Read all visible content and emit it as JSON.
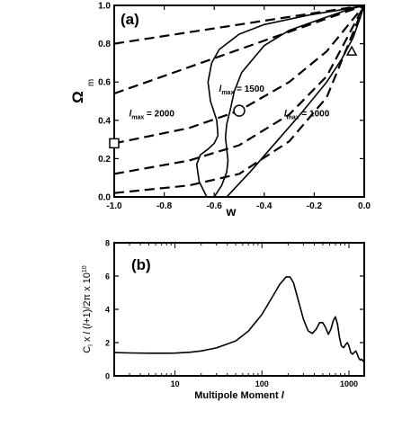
{
  "chart_data": [
    {
      "type": "line",
      "panel_label": "(a)",
      "xlabel": "w",
      "ylabel": "Ω",
      "ylabel_sub": "m",
      "xlim": [
        -1.0,
        0.0
      ],
      "ylim": [
        0.0,
        1.0
      ],
      "x_ticks": [
        -1.0,
        -0.8,
        -0.6,
        -0.4,
        -0.2,
        0.0
      ],
      "x_tick_labels": [
        "-1.0",
        "-0.8",
        "-0.6",
        "-0.4",
        "-0.2",
        "0.0"
      ],
      "y_ticks": [
        0.0,
        0.2,
        0.4,
        0.6,
        0.8,
        1.0
      ],
      "y_tick_labels": [
        "0.0",
        "0.2",
        "0.4",
        "0.6",
        "0.8",
        "1.0"
      ],
      "dashed_lines": [
        {
          "x": [
            -1.0,
            0.0
          ],
          "y": [
            0.8,
            1.0
          ]
        },
        {
          "x": [
            -1.0,
            0.0
          ],
          "y": [
            0.54,
            1.0
          ]
        },
        {
          "x": [
            -1.0,
            -0.7,
            -0.5,
            -0.3,
            -0.15,
            0.0
          ],
          "y": [
            0.28,
            0.36,
            0.45,
            0.6,
            0.76,
            1.0
          ]
        },
        {
          "x": [
            -1.0,
            -0.7,
            -0.5,
            -0.3,
            -0.15,
            0.0
          ],
          "y": [
            0.12,
            0.19,
            0.27,
            0.43,
            0.63,
            1.0
          ]
        },
        {
          "x": [
            -1.0,
            -0.7,
            -0.5,
            -0.3,
            -0.15,
            0.0
          ],
          "y": [
            0.02,
            0.06,
            0.12,
            0.29,
            0.52,
            1.0
          ]
        }
      ],
      "series": [
        {
          "label": "l_max = 2000",
          "x": [
            -0.63,
            -0.66,
            -0.67,
            -0.655,
            -0.625,
            -0.6,
            -0.585,
            -0.59,
            -0.615,
            -0.625,
            -0.61,
            -0.58,
            -0.5,
            -0.4,
            -0.22,
            -0.08,
            0.0
          ],
          "y": [
            0.0,
            0.08,
            0.17,
            0.22,
            0.25,
            0.28,
            0.32,
            0.4,
            0.5,
            0.6,
            0.7,
            0.77,
            0.85,
            0.9,
            0.95,
            0.98,
            1.0
          ]
        },
        {
          "label": "l_max = 1500",
          "x": [
            -0.6,
            -0.57,
            -0.55,
            -0.545,
            -0.55,
            -0.555,
            -0.55,
            -0.535,
            -0.52,
            -0.49,
            -0.4,
            -0.3,
            -0.17,
            -0.06,
            0.0
          ],
          "y": [
            0.0,
            0.06,
            0.13,
            0.19,
            0.25,
            0.31,
            0.38,
            0.46,
            0.55,
            0.65,
            0.79,
            0.87,
            0.93,
            0.98,
            1.0
          ]
        },
        {
          "label": "l_max = 1000",
          "x": [
            -0.55,
            -0.45,
            -0.35,
            -0.25,
            -0.15,
            -0.09,
            -0.045,
            -0.015,
            0.0
          ],
          "y": [
            0.0,
            0.14,
            0.29,
            0.44,
            0.6,
            0.72,
            0.83,
            0.94,
            1.0
          ]
        }
      ],
      "annotations": [
        {
          "text_l": "l",
          "text_sub": "max",
          "text_rest": " = 2000",
          "x": -0.85,
          "y": 0.42
        },
        {
          "text_l": "l",
          "text_sub": "max",
          "text_rest": " = 1500",
          "x": -0.49,
          "y": 0.55
        },
        {
          "text_l": "l",
          "text_sub": "max",
          "text_rest": " = 1000",
          "x": -0.23,
          "y": 0.42
        }
      ],
      "markers": [
        {
          "shape": "square",
          "x": -1.0,
          "y": 0.28
        },
        {
          "shape": "circle",
          "x": -0.5,
          "y": 0.45
        },
        {
          "shape": "triangle",
          "x": -0.05,
          "y": 0.76
        }
      ]
    },
    {
      "type": "line",
      "panel_label": "(b)",
      "xlabel": "Multipole Moment",
      "xlabel_italic": "l",
      "ylabel": "C_l x l (l+1)/2π x 10^10",
      "x_scale": "log",
      "xlim": [
        2,
        1500
      ],
      "ylim": [
        0,
        8
      ],
      "x_ticks": [
        10,
        100,
        1000
      ],
      "x_tick_labels": [
        "10",
        "100",
        "1000"
      ],
      "y_ticks": [
        0,
        2,
        4,
        6,
        8
      ],
      "y_tick_labels": [
        "0",
        "2",
        "4",
        "6",
        "8"
      ],
      "series": [
        {
          "name": "C_l spectrum",
          "x": [
            2,
            3,
            5,
            8,
            10,
            15,
            20,
            30,
            50,
            70,
            100,
            130,
            160,
            190,
            210,
            230,
            260,
            300,
            340,
            380,
            420,
            460,
            500,
            540,
            580,
            620,
            660,
            700,
            740,
            780,
            820,
            870,
            920,
            960,
            1000,
            1050,
            1100,
            1150,
            1200,
            1250,
            1300,
            1350,
            1400,
            1450,
            1500
          ],
          "y": [
            1.4,
            1.38,
            1.36,
            1.36,
            1.37,
            1.42,
            1.5,
            1.68,
            2.1,
            2.7,
            3.7,
            4.7,
            5.5,
            5.95,
            5.95,
            5.6,
            4.6,
            3.4,
            2.7,
            2.55,
            2.8,
            3.2,
            3.2,
            2.9,
            2.5,
            2.8,
            3.3,
            3.55,
            3.1,
            2.3,
            1.8,
            1.7,
            1.9,
            2.0,
            1.8,
            1.4,
            1.3,
            1.4,
            1.5,
            1.3,
            1.05,
            0.95,
            1.0,
            0.9,
            0.8
          ]
        }
      ]
    }
  ],
  "text": {
    "ylabel_b_c": "C",
    "ylabel_b_sub": "l",
    "ylabel_b_x1": " x ",
    "ylabel_b_l1": "l",
    "ylabel_b_mid": " (",
    "ylabel_b_l2": "l",
    "ylabel_b_rest": "+1)/2π x 10",
    "ylabel_b_exp": "10"
  }
}
